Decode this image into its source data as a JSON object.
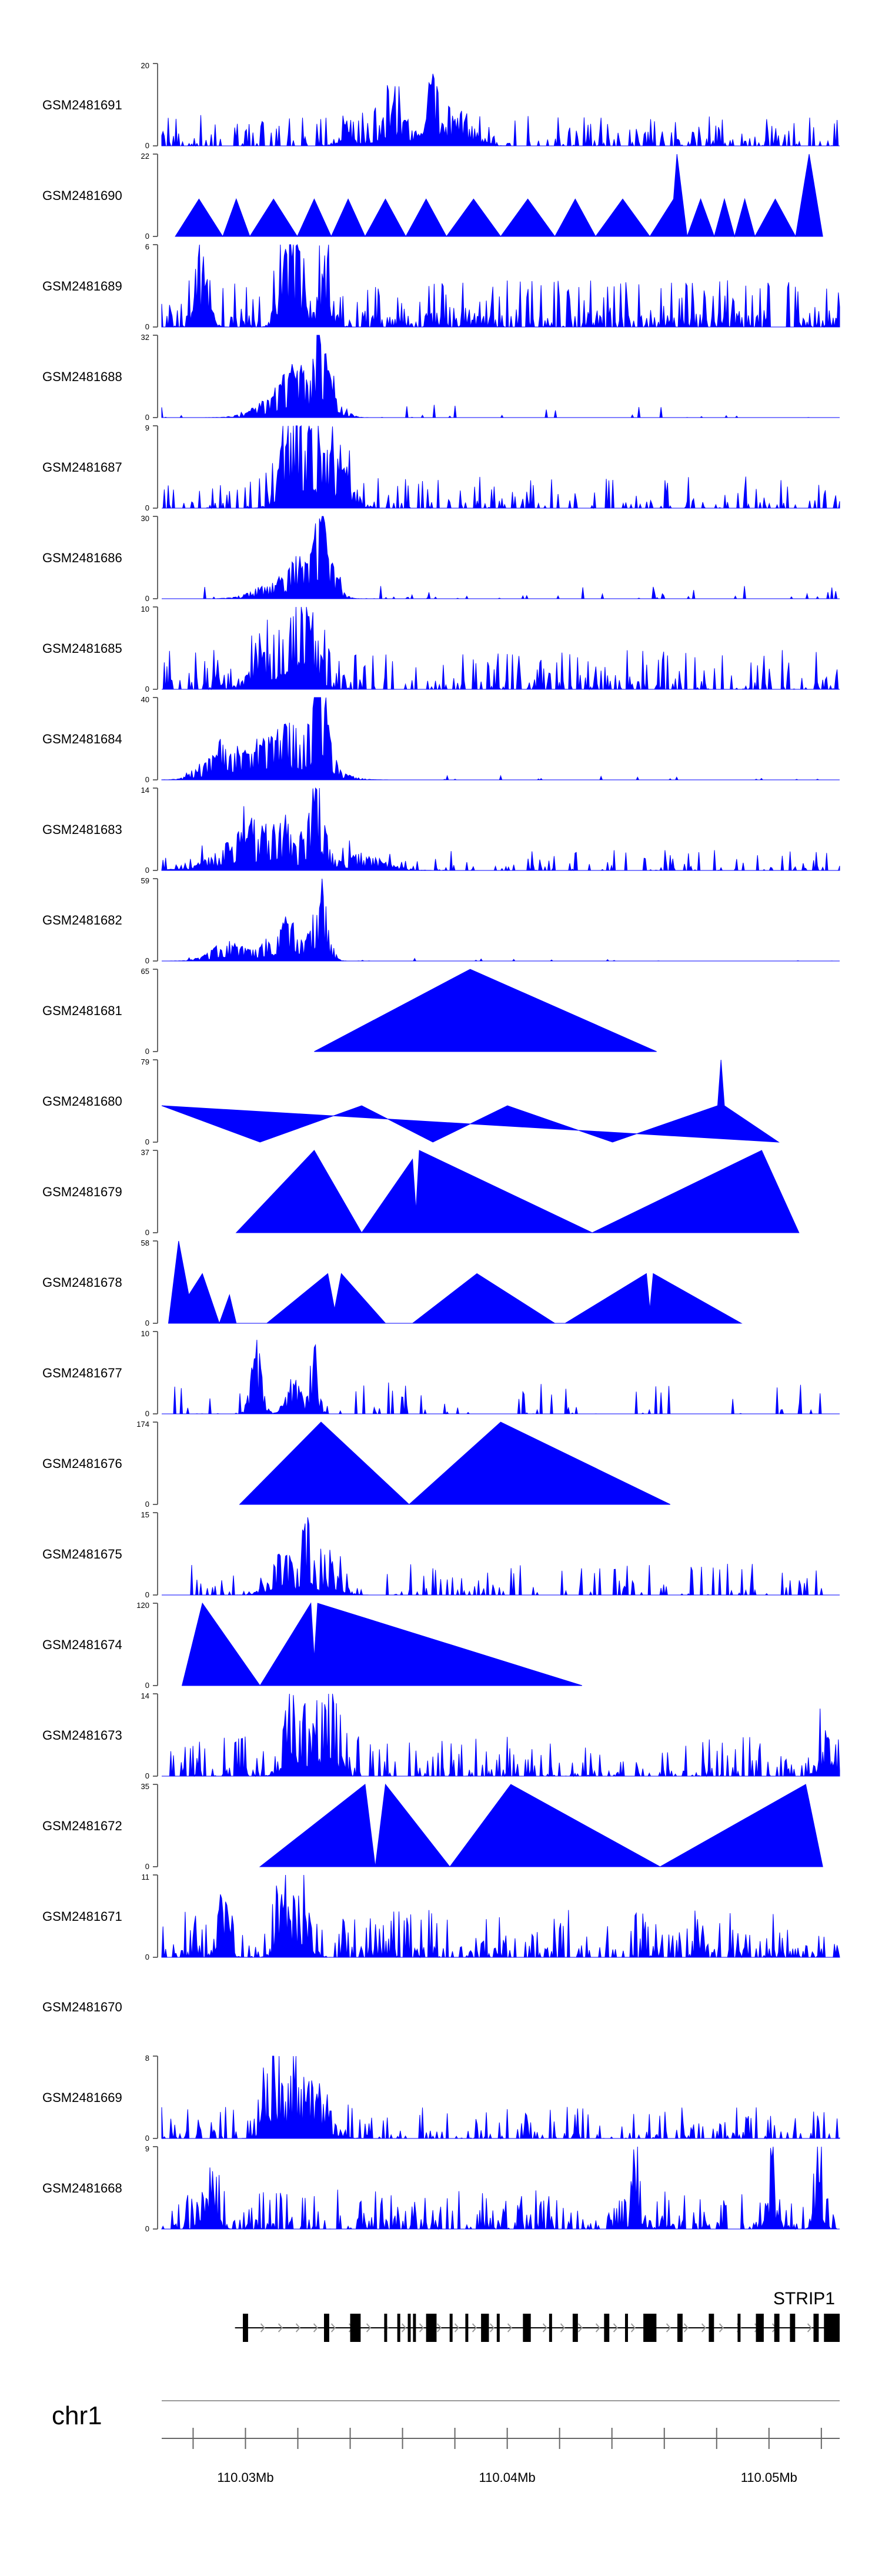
{
  "chart_data": {
    "type": "area",
    "title": "",
    "xlabel": "",
    "x_unit": "Mb",
    "xlim": [
      110.0268,
      110.0527
    ],
    "x_ticks": [
      {
        "value": 110.03,
        "label": "110.03Mb"
      },
      {
        "value": 110.04,
        "label": "110.04Mb"
      },
      {
        "value": 110.05,
        "label": "110.05Mb"
      }
    ],
    "chromosome": "chr1",
    "gene": {
      "name": "STRIP1",
      "strand": "+",
      "start": 110.0296,
      "end": 110.0527,
      "exons": [
        [
          110.0299,
          110.0301
        ],
        [
          110.033,
          110.0332
        ],
        [
          110.034,
          110.0344
        ],
        [
          110.0353,
          110.0354
        ],
        [
          110.0358,
          110.0359
        ],
        [
          110.0362,
          110.0363
        ],
        [
          110.0364,
          110.0365
        ],
        [
          110.0369,
          110.0373
        ],
        [
          110.0378,
          110.0379
        ],
        [
          110.0384,
          110.0385
        ],
        [
          110.039,
          110.0393
        ],
        [
          110.0396,
          110.0397
        ],
        [
          110.0406,
          110.0409
        ],
        [
          110.0416,
          110.0417
        ],
        [
          110.0425,
          110.0427
        ],
        [
          110.0437,
          110.0439
        ],
        [
          110.0445,
          110.0446
        ],
        [
          110.0452,
          110.0457
        ],
        [
          110.0465,
          110.0467
        ],
        [
          110.0477,
          110.0479
        ],
        [
          110.0488,
          110.0489
        ],
        [
          110.0495,
          110.0498
        ],
        [
          110.0502,
          110.0504
        ],
        [
          110.0508,
          110.051
        ],
        [
          110.0517,
          110.0519
        ],
        [
          110.0521,
          110.0527
        ]
      ]
    },
    "series": [
      {
        "name": "GSM2481691",
        "ymax": 20,
        "ymin": 0,
        "shape": "dense",
        "seed": 11,
        "peaks": [
          [
            0.4,
            20,
            0.007
          ],
          [
            0.35,
            8,
            0.02
          ],
          [
            0.44,
            9,
            0.02
          ],
          [
            0.27,
            7,
            0.01
          ],
          [
            0.33,
            6,
            0.015
          ]
        ],
        "noise": 0.12,
        "spikes": 0.35
      },
      {
        "name": "GSM2481690",
        "ymax": 22,
        "ymin": 0,
        "shape": "tri",
        "seed": 0,
        "points": [
          [
            0.02,
            0
          ],
          [
            0.055,
            10
          ],
          [
            0.09,
            0
          ],
          [
            0.11,
            10
          ],
          [
            0.13,
            0
          ],
          [
            0.165,
            10
          ],
          [
            0.2,
            0
          ],
          [
            0.225,
            10
          ],
          [
            0.25,
            0
          ],
          [
            0.275,
            10
          ],
          [
            0.3,
            0
          ],
          [
            0.33,
            10
          ],
          [
            0.36,
            0
          ],
          [
            0.39,
            10
          ],
          [
            0.42,
            0
          ],
          [
            0.46,
            10
          ],
          [
            0.5,
            0
          ],
          [
            0.54,
            10
          ],
          [
            0.58,
            0
          ],
          [
            0.61,
            10
          ],
          [
            0.64,
            0
          ],
          [
            0.68,
            10
          ],
          [
            0.72,
            0
          ],
          [
            0.755,
            10
          ],
          [
            0.76,
            22
          ],
          [
            0.775,
            0
          ],
          [
            0.795,
            10
          ],
          [
            0.815,
            0
          ],
          [
            0.83,
            10
          ],
          [
            0.845,
            0
          ],
          [
            0.86,
            10
          ],
          [
            0.875,
            0
          ],
          [
            0.905,
            10
          ],
          [
            0.935,
            0
          ],
          [
            0.955,
            22
          ],
          [
            0.975,
            0
          ]
        ]
      },
      {
        "name": "GSM2481689",
        "ymax": 6,
        "ymin": 0,
        "shape": "dense",
        "seed": 21,
        "peaks": [
          [
            0.18,
            5,
            0.01
          ],
          [
            0.2,
            5.5,
            0.01
          ],
          [
            0.24,
            5,
            0.01
          ],
          [
            0.06,
            4,
            0.01
          ]
        ],
        "noise": 0.18,
        "spikes": 0.6
      },
      {
        "name": "GSM2481688",
        "ymax": 32,
        "ymin": 0,
        "shape": "dense",
        "seed": 31,
        "peaks": [
          [
            0.234,
            32,
            0.008
          ],
          [
            0.2,
            18,
            0.02
          ],
          [
            0.17,
            8,
            0.03
          ],
          [
            0.25,
            12,
            0.015
          ]
        ],
        "noise": 0.05,
        "spikes": 0.06
      },
      {
        "name": "GSM2481687",
        "ymax": 9,
        "ymin": 0,
        "shape": "dense",
        "seed": 41,
        "peaks": [
          [
            0.19,
            9,
            0.015
          ],
          [
            0.22,
            8,
            0.02
          ],
          [
            0.26,
            5,
            0.02
          ]
        ],
        "noise": 0.12,
        "spikes": 0.3
      },
      {
        "name": "GSM2481686",
        "ymax": 30,
        "ymin": 0,
        "shape": "dense",
        "seed": 51,
        "peaks": [
          [
            0.234,
            30,
            0.008
          ],
          [
            0.21,
            14,
            0.02
          ],
          [
            0.25,
            10,
            0.012
          ],
          [
            0.17,
            6,
            0.03
          ]
        ],
        "noise": 0.05,
        "spikes": 0.08
      },
      {
        "name": "GSM2481685",
        "ymax": 10,
        "ymin": 0,
        "shape": "dense",
        "seed": 61,
        "peaks": [
          [
            0.215,
            10,
            0.015
          ],
          [
            0.19,
            7,
            0.02
          ],
          [
            0.15,
            5,
            0.02
          ]
        ],
        "noise": 0.15,
        "spikes": 0.35
      },
      {
        "name": "GSM2481684",
        "ymax": 40,
        "ymin": 0,
        "shape": "dense",
        "seed": 71,
        "peaks": [
          [
            0.235,
            40,
            0.01
          ],
          [
            0.2,
            30,
            0.035
          ],
          [
            0.09,
            20,
            0.025
          ],
          [
            0.15,
            12,
            0.02
          ]
        ],
        "noise": 0.02,
        "spikes": 0.03
      },
      {
        "name": "GSM2481683",
        "ymax": 14,
        "ymin": 0,
        "shape": "dense",
        "seed": 81,
        "peaks": [
          [
            0.228,
            14,
            0.01
          ],
          [
            0.15,
            9,
            0.05
          ],
          [
            0.3,
            3,
            0.03
          ]
        ],
        "noise": 0.08,
        "spikes": 0.2
      },
      {
        "name": "GSM2481682",
        "ymax": 59,
        "ymin": 0,
        "shape": "dense",
        "seed": 91,
        "peaks": [
          [
            0.235,
            59,
            0.01
          ],
          [
            0.19,
            30,
            0.02
          ],
          [
            0.1,
            15,
            0.025
          ],
          [
            0.16,
            10,
            0.02
          ]
        ],
        "noise": 0.01,
        "spikes": 0.02
      },
      {
        "name": "GSM2481681",
        "ymax": 65,
        "ymin": 0,
        "shape": "tri",
        "points": [
          [
            0.225,
            0
          ],
          [
            0.455,
            65
          ],
          [
            0.73,
            0
          ]
        ]
      },
      {
        "name": "GSM2481680",
        "ymax": 79,
        "ymin": 0,
        "shape": "tri",
        "points": [
          [
            0,
            35
          ],
          [
            0.145,
            0
          ],
          [
            0.295,
            35
          ],
          [
            0.4,
            0
          ],
          [
            0.51,
            35
          ],
          [
            0.665,
            0
          ],
          [
            0.82,
            35
          ],
          [
            0.825,
            79
          ],
          [
            0.83,
            35
          ],
          [
            0.91,
            0
          ]
        ]
      },
      {
        "name": "GSM2481679",
        "ymax": 37,
        "ymin": 0,
        "shape": "tri",
        "points": [
          [
            0.11,
            0
          ],
          [
            0.225,
            37
          ],
          [
            0.295,
            0
          ],
          [
            0.37,
            33
          ],
          [
            0.375,
            10
          ],
          [
            0.38,
            37
          ],
          [
            0.635,
            0
          ],
          [
            0.885,
            37
          ],
          [
            0.94,
            0
          ]
        ]
      },
      {
        "name": "GSM2481678",
        "ymax": 58,
        "ymin": 0,
        "shape": "tri",
        "points": [
          [
            0.01,
            0
          ],
          [
            0.025,
            58
          ],
          [
            0.04,
            20
          ],
          [
            0.06,
            35
          ],
          [
            0.085,
            0
          ],
          [
            0.1,
            20
          ],
          [
            0.11,
            0
          ],
          [
            0.155,
            0
          ],
          [
            0.245,
            35
          ],
          [
            0.255,
            10
          ],
          [
            0.265,
            35
          ],
          [
            0.33,
            0
          ],
          [
            0.37,
            0
          ],
          [
            0.465,
            35
          ],
          [
            0.58,
            0
          ],
          [
            0.595,
            0
          ],
          [
            0.715,
            35
          ],
          [
            0.72,
            10
          ],
          [
            0.725,
            35
          ],
          [
            0.855,
            0
          ]
        ]
      },
      {
        "name": "GSM2481677",
        "ymax": 10,
        "ymin": 0,
        "shape": "dense",
        "seed": 101,
        "peaks": [
          [
            0.14,
            10,
            0.008
          ],
          [
            0.225,
            10,
            0.006
          ],
          [
            0.195,
            5,
            0.01
          ]
        ],
        "noise": 0.12,
        "spikes": 0.12
      },
      {
        "name": "GSM2481676",
        "ymax": 174,
        "ymin": 0,
        "shape": "tri",
        "points": [
          [
            0.115,
            0
          ],
          [
            0.235,
            174
          ],
          [
            0.365,
            0
          ],
          [
            0.5,
            174
          ],
          [
            0.75,
            0
          ]
        ]
      },
      {
        "name": "GSM2481675",
        "ymax": 15,
        "ymin": 0,
        "shape": "dense",
        "seed": 111,
        "peaks": [
          [
            0.215,
            15,
            0.007
          ],
          [
            0.18,
            8,
            0.02
          ],
          [
            0.25,
            6,
            0.015
          ]
        ],
        "noise": 0.12,
        "spikes": 0.25
      },
      {
        "name": "GSM2481674",
        "ymax": 120,
        "ymin": 0,
        "shape": "tri",
        "points": [
          [
            0.03,
            0
          ],
          [
            0.06,
            120
          ],
          [
            0.145,
            0
          ],
          [
            0.22,
            120
          ],
          [
            0.225,
            40
          ],
          [
            0.23,
            120
          ],
          [
            0.62,
            0
          ]
        ]
      },
      {
        "name": "GSM2481673",
        "ymax": 14,
        "ymin": 0,
        "shape": "dense",
        "seed": 121,
        "peaks": [
          [
            0.19,
            14,
            0.01
          ],
          [
            0.25,
            13,
            0.01
          ],
          [
            0.22,
            9,
            0.02
          ],
          [
            0.98,
            8,
            0.01
          ]
        ],
        "noise": 0.15,
        "spikes": 0.4
      },
      {
        "name": "GSM2481672",
        "ymax": 35,
        "ymin": 0,
        "shape": "tri",
        "points": [
          [
            0.145,
            0
          ],
          [
            0.3,
            35
          ],
          [
            0.315,
            0
          ],
          [
            0.33,
            35
          ],
          [
            0.425,
            0
          ],
          [
            0.515,
            35
          ],
          [
            0.735,
            0
          ],
          [
            0.95,
            35
          ],
          [
            0.975,
            0
          ]
        ]
      },
      {
        "name": "GSM2481671",
        "ymax": 11,
        "ymin": 0,
        "shape": "dense",
        "seed": 131,
        "peaks": [
          [
            0.09,
            10,
            0.008
          ],
          [
            0.18,
            11,
            0.01
          ],
          [
            0.21,
            8,
            0.01
          ]
        ],
        "noise": 0.18,
        "spikes": 0.45
      },
      {
        "name": "GSM2481670",
        "ymax": null,
        "ymin": null,
        "shape": "empty"
      },
      {
        "name": "GSM2481669",
        "ymax": 8,
        "ymin": 0,
        "shape": "dense",
        "seed": 141,
        "peaks": [
          [
            0.16,
            8,
            0.008
          ],
          [
            0.19,
            6,
            0.02
          ],
          [
            0.23,
            4,
            0.02
          ]
        ],
        "noise": 0.12,
        "spikes": 0.35
      },
      {
        "name": "GSM2481668",
        "ymax": 9,
        "ymin": 0,
        "shape": "dense",
        "seed": 151,
        "peaks": [
          [
            0.7,
            9,
            0.006
          ],
          [
            0.97,
            9,
            0.006
          ],
          [
            0.9,
            8,
            0.006
          ],
          [
            0.07,
            5,
            0.01
          ]
        ],
        "noise": 0.15,
        "spikes": 0.5
      }
    ]
  },
  "colors": {
    "fill": "#0000ff",
    "axis": "#666666",
    "text": "#000000",
    "gene": "#000000",
    "intron_arrow": "#999999"
  }
}
